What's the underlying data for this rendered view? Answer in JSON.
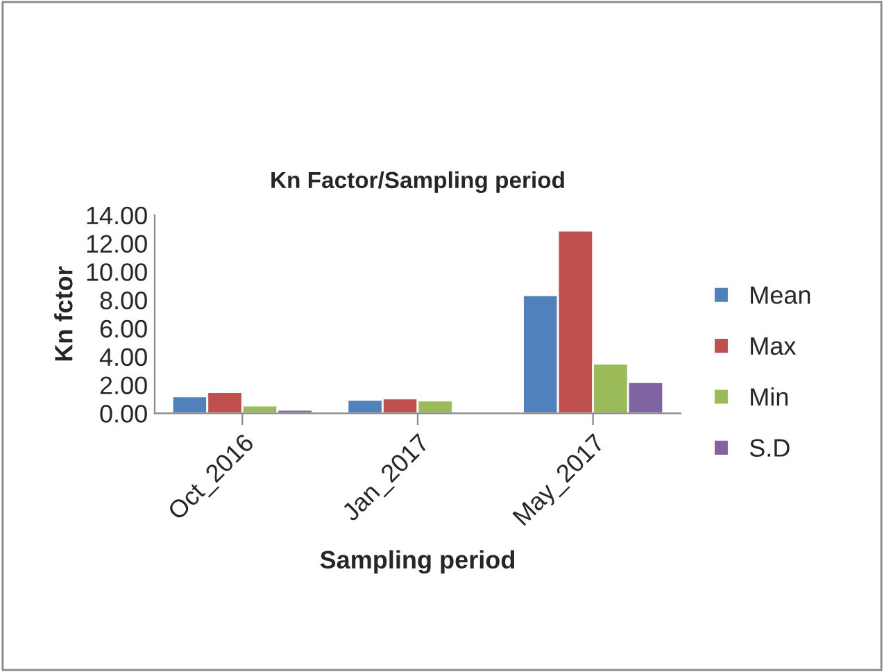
{
  "chart_data": {
    "type": "bar",
    "title": "Kn Factor/Sampling period",
    "xlabel": "Sampling period",
    "ylabel": "Kn fctor",
    "categories": [
      "Oct_2016",
      "Jan_2017",
      "May_2017"
    ],
    "series": [
      {
        "name": "Mean",
        "color": "#4f81bd",
        "values": [
          1.2,
          0.95,
          8.35
        ]
      },
      {
        "name": "Max",
        "color": "#c0504d",
        "values": [
          1.5,
          1.05,
          12.9
        ]
      },
      {
        "name": "Min",
        "color": "#9bbb59",
        "values": [
          0.55,
          0.9,
          3.5
        ]
      },
      {
        "name": "S.D",
        "color": "#8064a2",
        "values": [
          0.25,
          null,
          2.2
        ]
      }
    ],
    "ylim": [
      0,
      14
    ],
    "yticks": [
      {
        "value": 0,
        "label": "0.00"
      },
      {
        "value": 2,
        "label": "2.00"
      },
      {
        "value": 4,
        "label": "4.00"
      },
      {
        "value": 6,
        "label": "6.00"
      },
      {
        "value": 8,
        "label": "8.00"
      },
      {
        "value": 10,
        "label": "10.00"
      },
      {
        "value": 12,
        "label": "12.00"
      },
      {
        "value": 14,
        "label": "14.00"
      }
    ],
    "grid": false,
    "legend": "right"
  }
}
